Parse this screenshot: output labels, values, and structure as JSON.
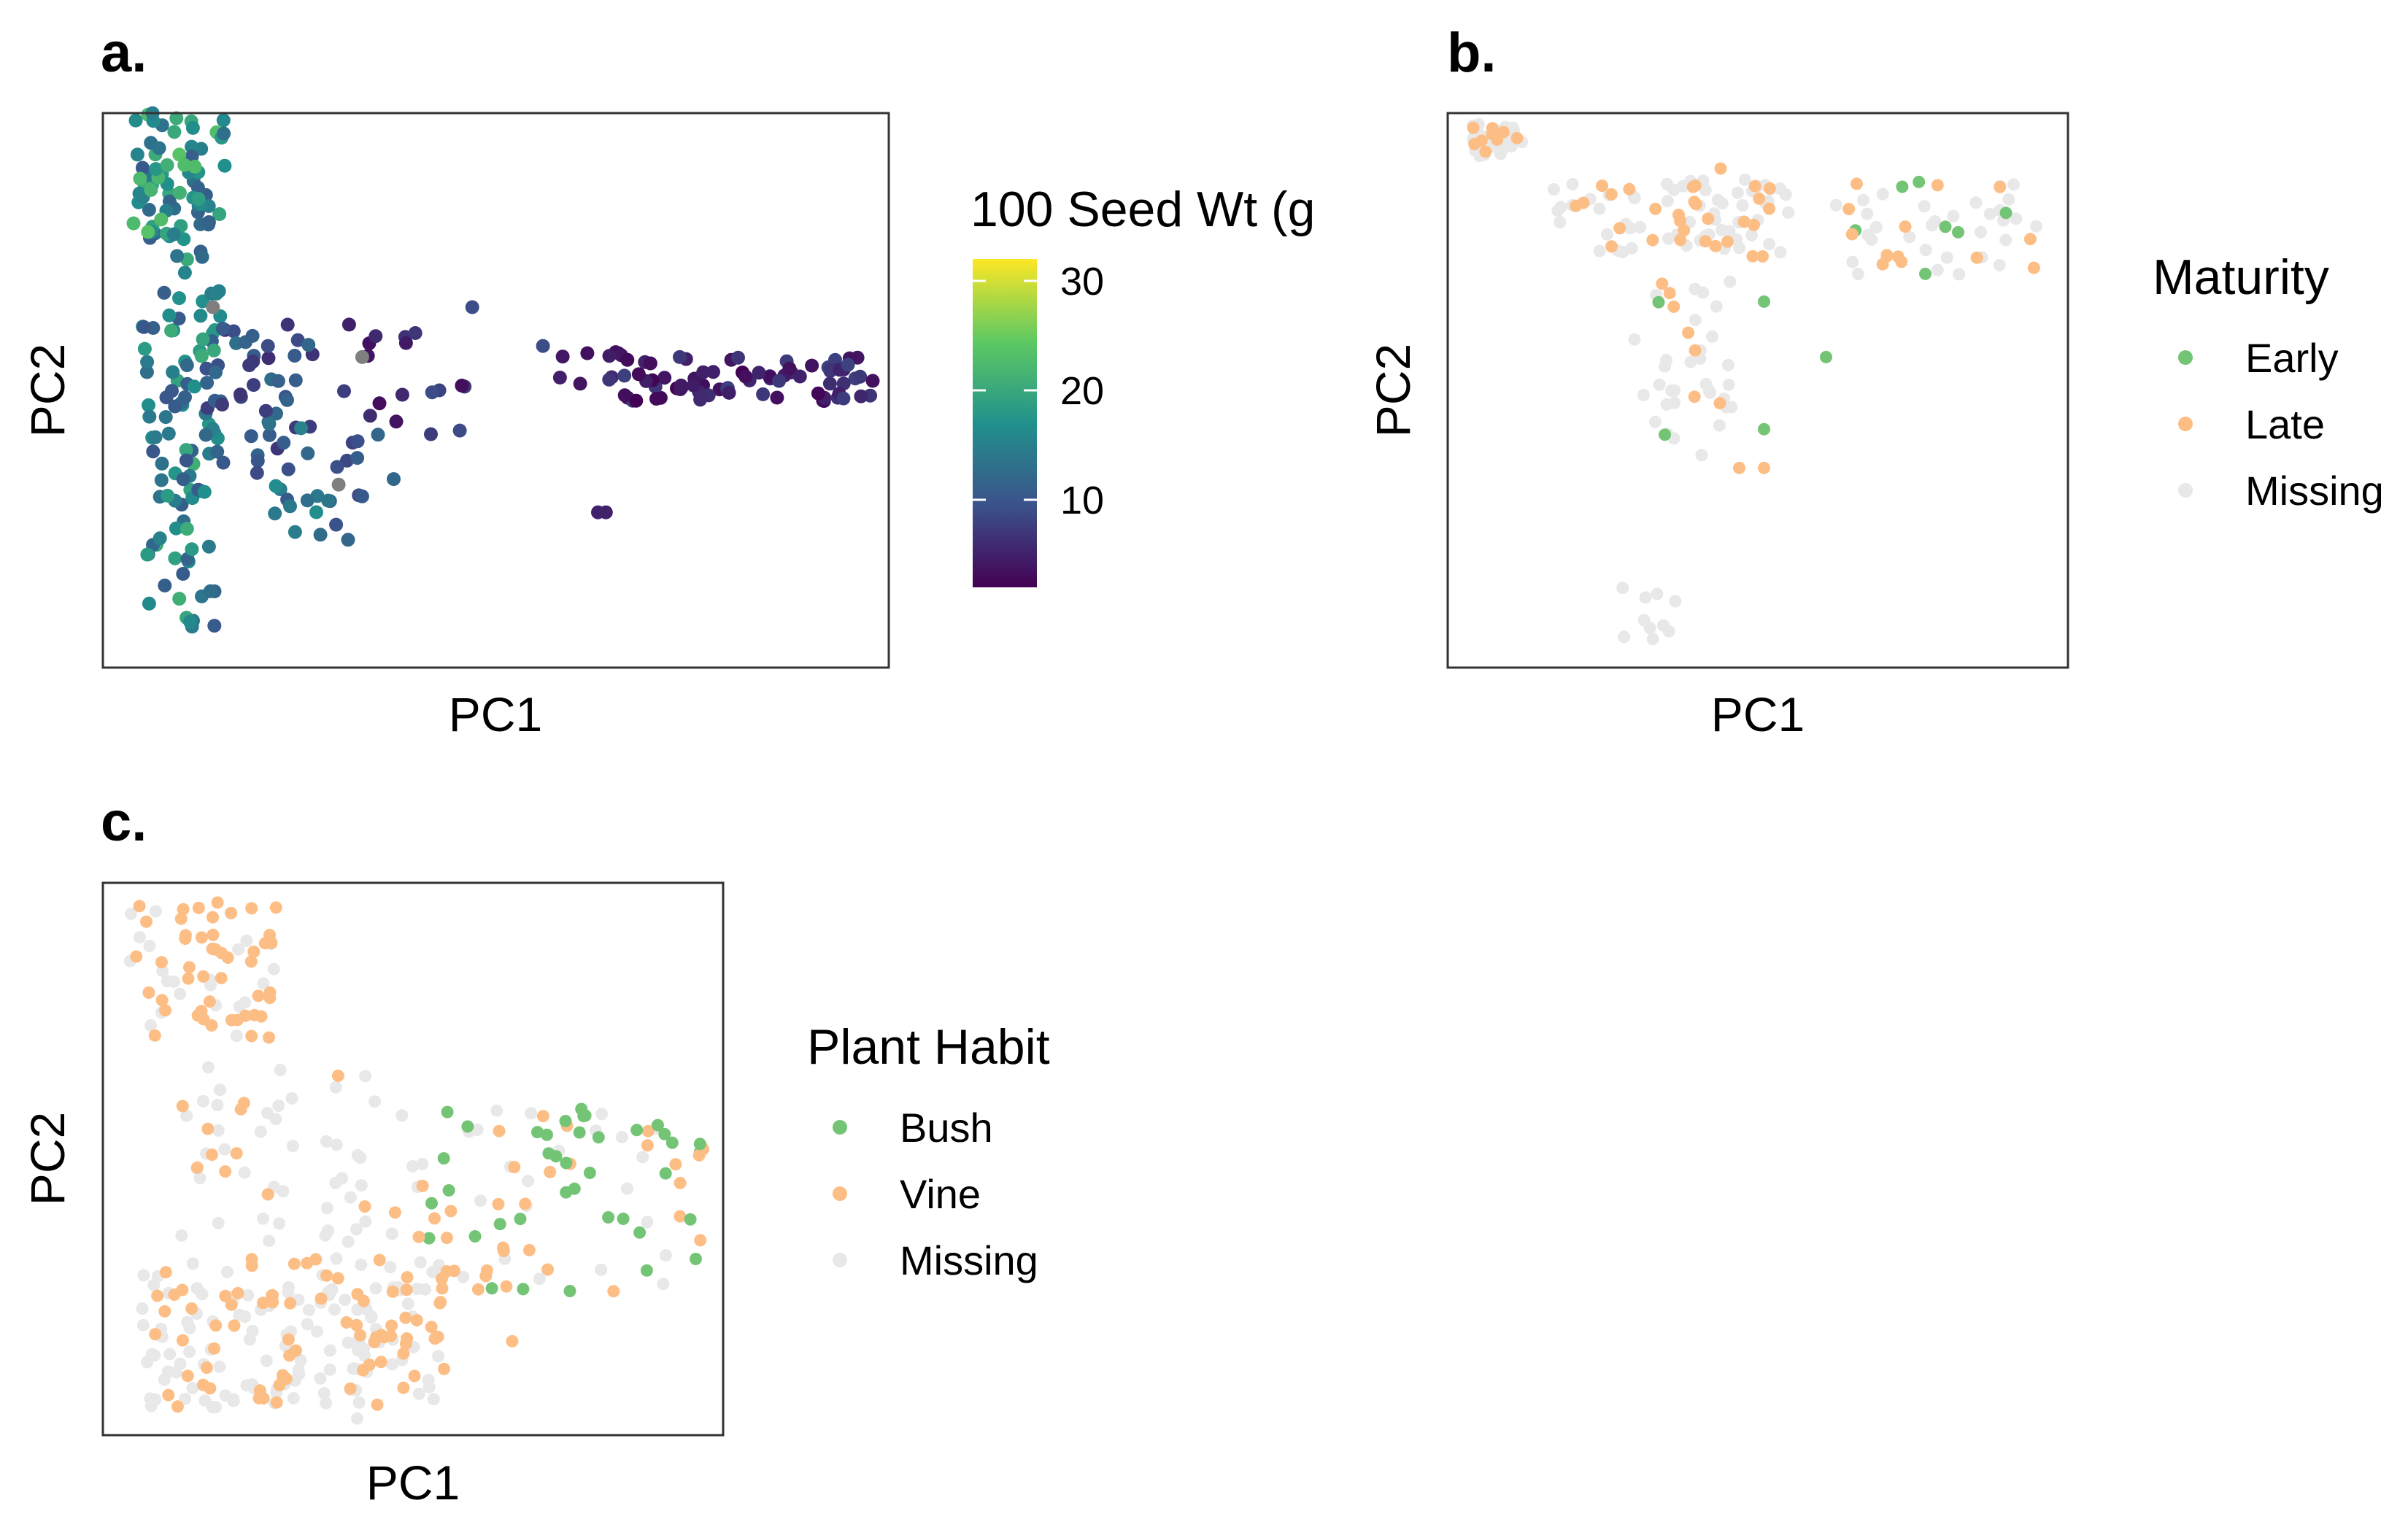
{
  "chart_data": [
    {
      "panel_label": "a.",
      "type": "scatter",
      "xlabel": "PC1",
      "ylabel": "PC2",
      "color_mode": "continuous",
      "colorbar": {
        "title": "100 Seed Wt (g",
        "range": [
          2,
          32
        ],
        "ticks": [
          {
            "value": 10,
            "label": "10"
          },
          {
            "value": 20,
            "label": "20"
          },
          {
            "value": 30,
            "label": "30"
          }
        ],
        "colors": [
          "#440154",
          "#3b528b",
          "#21918c",
          "#5ec962",
          "#fde725"
        ]
      },
      "grid": false,
      "seed": 11,
      "clusters": [
        {
          "n": 130,
          "x": [
            0.05,
            0.15
          ],
          "y": [
            0.06,
            0.94
          ],
          "v": [
            10,
            21
          ]
        },
        {
          "n": 45,
          "x": [
            0.03,
            0.16
          ],
          "y": [
            0.0,
            0.23
          ],
          "v": [
            13,
            24
          ]
        },
        {
          "n": 45,
          "x": [
            0.13,
            0.27
          ],
          "y": [
            0.38,
            0.65
          ],
          "v": [
            6,
            14
          ]
        },
        {
          "n": 25,
          "x": [
            0.2,
            0.33
          ],
          "y": [
            0.55,
            0.77
          ],
          "v": [
            8,
            17
          ]
        },
        {
          "n": 18,
          "x": [
            0.28,
            0.48
          ],
          "y": [
            0.38,
            0.58
          ],
          "v": [
            3,
            9
          ]
        },
        {
          "n": 10,
          "x": [
            0.58,
            0.66
          ],
          "y": [
            0.42,
            0.5
          ],
          "v": [
            3,
            7
          ]
        },
        {
          "n": 75,
          "x": [
            0.66,
            0.98
          ],
          "y": [
            0.44,
            0.52
          ],
          "v": [
            2,
            8
          ]
        }
      ],
      "points": [
        {
          "x": 0.14,
          "y": 0.35,
          "v": 0
        },
        {
          "x": 0.33,
          "y": 0.44,
          "v": 0
        },
        {
          "x": 0.3,
          "y": 0.67,
          "v": 0
        },
        {
          "x": 0.63,
          "y": 0.72,
          "v": 5
        },
        {
          "x": 0.64,
          "y": 0.72,
          "v": 5
        },
        {
          "x": 0.47,
          "y": 0.35,
          "v": 9
        },
        {
          "x": 0.56,
          "y": 0.42,
          "v": 9
        },
        {
          "x": 0.21,
          "y": 0.42,
          "v": 9
        },
        {
          "x": 0.37,
          "y": 0.66,
          "v": 12
        },
        {
          "x": 0.35,
          "y": 0.58,
          "v": 12
        }
      ]
    },
    {
      "panel_label": "b.",
      "type": "scatter",
      "xlabel": "PC1",
      "ylabel": "PC2",
      "legend": {
        "title": "Maturity",
        "position": "right"
      },
      "categories": [
        {
          "label": "Early",
          "color": "#74c476"
        },
        {
          "label": "Late",
          "color": "#fdbe85"
        },
        {
          "label": "Missing",
          "color": "#e8e8e8"
        }
      ],
      "grid": false,
      "seed": 22,
      "clusters": [
        {
          "n": 40,
          "x": [
            0.04,
            0.12
          ],
          "y": [
            0.02,
            0.08
          ],
          "cat": [
            0.0,
            0.25,
            0.75
          ]
        },
        {
          "n": 90,
          "x": [
            0.17,
            0.55
          ],
          "y": [
            0.12,
            0.26
          ],
          "cat": [
            0.01,
            0.3,
            0.69
          ]
        },
        {
          "n": 50,
          "x": [
            0.62,
            0.95
          ],
          "y": [
            0.12,
            0.3
          ],
          "cat": [
            0.1,
            0.2,
            0.7
          ]
        },
        {
          "n": 40,
          "x": [
            0.29,
            0.46
          ],
          "y": [
            0.3,
            0.62
          ],
          "cat": [
            0.07,
            0.3,
            0.63
          ]
        },
        {
          "n": 10,
          "x": [
            0.28,
            0.37
          ],
          "y": [
            0.85,
            0.96
          ],
          "cat": [
            0.0,
            0.15,
            0.85
          ]
        }
      ],
      "points": [
        {
          "x": 0.51,
          "y": 0.64,
          "c": "Late"
        },
        {
          "x": 0.47,
          "y": 0.64,
          "c": "Late"
        },
        {
          "x": 0.44,
          "y": 0.1,
          "c": "Late"
        },
        {
          "x": 0.51,
          "y": 0.34,
          "c": "Early"
        },
        {
          "x": 0.35,
          "y": 0.58,
          "c": "Early"
        },
        {
          "x": 0.51,
          "y": 0.57,
          "c": "Early"
        },
        {
          "x": 0.61,
          "y": 0.44,
          "c": "Early"
        },
        {
          "x": 0.77,
          "y": 0.29,
          "c": "Early"
        },
        {
          "x": 0.9,
          "y": 0.18,
          "c": "Early"
        }
      ]
    },
    {
      "panel_label": "c.",
      "type": "scatter",
      "xlabel": "PC1",
      "ylabel": "PC2",
      "legend": {
        "title": "Plant Habit",
        "position": "right"
      },
      "categories": [
        {
          "label": "Bush",
          "color": "#74c476"
        },
        {
          "label": "Vine",
          "color": "#fdbe85"
        },
        {
          "label": "Missing",
          "color": "#e8e8e8"
        }
      ],
      "grid": false,
      "seed": 33,
      "clusters": [
        {
          "n": 70,
          "x": [
            0.04,
            0.28
          ],
          "y": [
            0.03,
            0.28
          ],
          "cat": [
            0.0,
            0.75,
            0.25
          ]
        },
        {
          "n": 60,
          "x": [
            0.12,
            0.52
          ],
          "y": [
            0.32,
            0.65
          ],
          "cat": [
            0.0,
            0.3,
            0.7
          ]
        },
        {
          "n": 200,
          "x": [
            0.06,
            0.55
          ],
          "y": [
            0.68,
            0.95
          ],
          "cat": [
            0.0,
            0.3,
            0.7
          ]
        },
        {
          "n": 70,
          "x": [
            0.5,
            0.97
          ],
          "y": [
            0.4,
            0.74
          ],
          "cat": [
            0.32,
            0.38,
            0.3
          ]
        },
        {
          "n": 25,
          "x": [
            0.7,
            0.98
          ],
          "y": [
            0.38,
            0.55
          ],
          "cat": [
            0.55,
            0.3,
            0.15
          ]
        }
      ],
      "points": [
        {
          "x": 0.66,
          "y": 0.83,
          "c": "Vine"
        },
        {
          "x": 0.55,
          "y": 0.88,
          "c": "Vine"
        },
        {
          "x": 0.41,
          "y": 0.97,
          "c": "Missing"
        },
        {
          "x": 0.53,
          "y": 0.58,
          "c": "Bush"
        },
        {
          "x": 0.6,
          "y": 0.64,
          "c": "Bush"
        }
      ]
    }
  ]
}
